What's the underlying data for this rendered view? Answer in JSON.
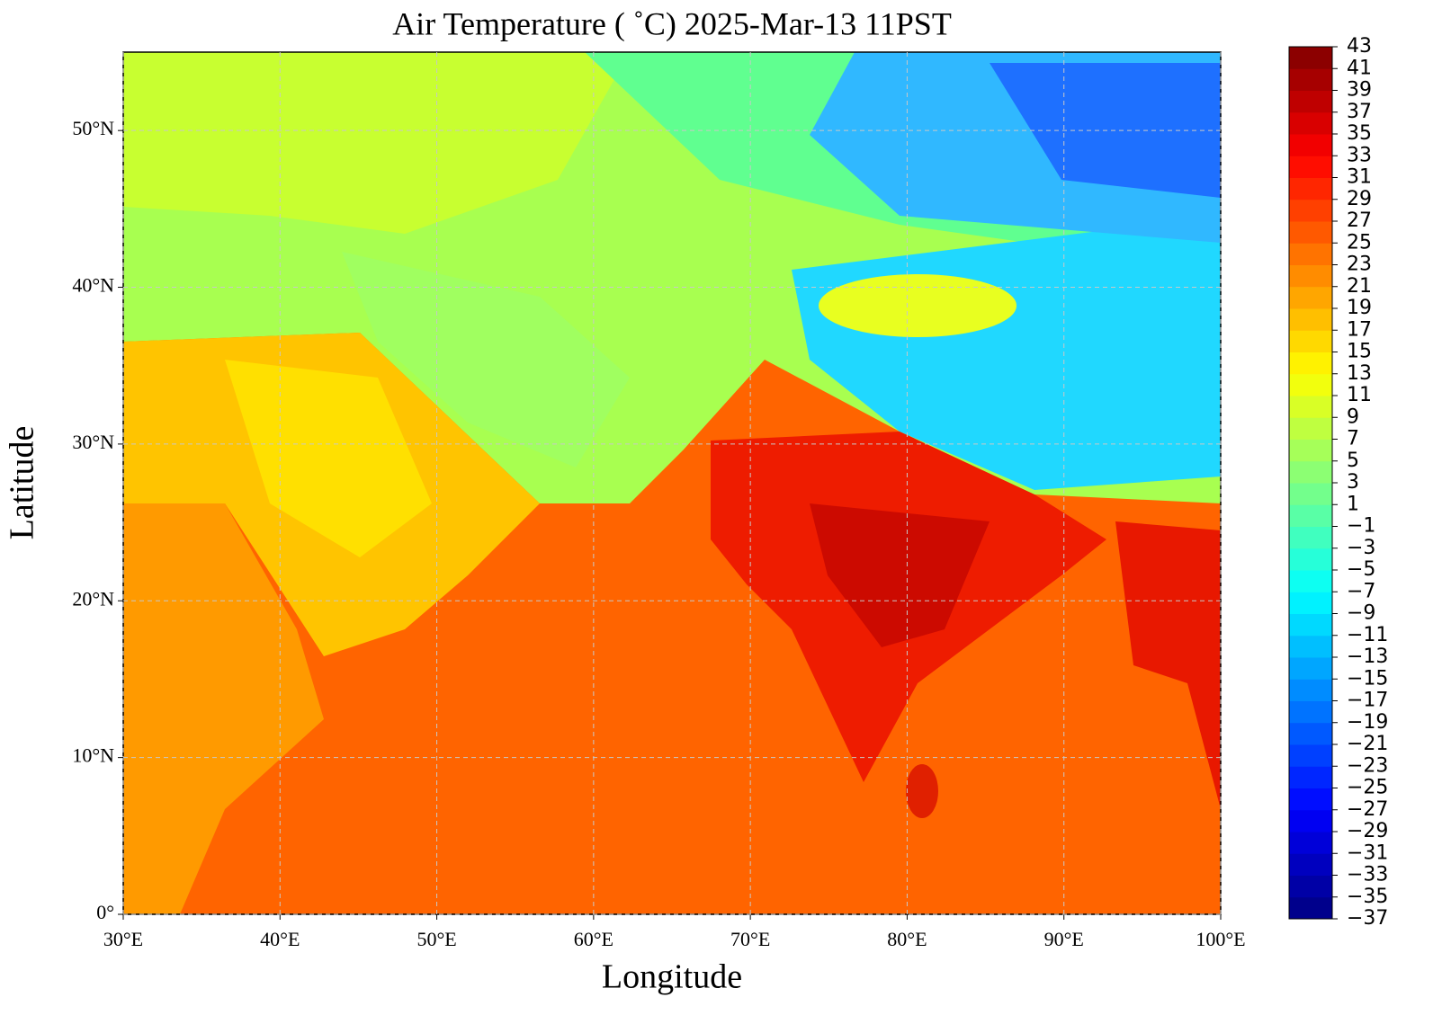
{
  "chart_data": {
    "type": "contour_map",
    "title": "Air Temperature ( ˚C)  2025-Mar-13 11PST",
    "x_label": "Longitude",
    "y_label": "Latitude",
    "xlim": [
      30,
      100
    ],
    "ylim": [
      0,
      55
    ],
    "xticks": [
      {
        "value": 30,
        "label": "30°E"
      },
      {
        "value": 40,
        "label": "40°E"
      },
      {
        "value": 50,
        "label": "50°E"
      },
      {
        "value": 60,
        "label": "60°E"
      },
      {
        "value": 70,
        "label": "70°E"
      },
      {
        "value": 80,
        "label": "80°E"
      },
      {
        "value": 90,
        "label": "90°E"
      },
      {
        "value": 100,
        "label": "100°E"
      }
    ],
    "yticks": [
      {
        "value": 0,
        "label": "0°"
      },
      {
        "value": 10,
        "label": "10°N"
      },
      {
        "value": 20,
        "label": "20°N"
      },
      {
        "value": 30,
        "label": "30°N"
      },
      {
        "value": 40,
        "label": "40°N"
      },
      {
        "value": 50,
        "label": "50°N"
      }
    ],
    "grid": true,
    "colormap": "jet",
    "colorbar_lim": [
      -37,
      43
    ],
    "colorbar_ticks": [
      43,
      41,
      39,
      37,
      35,
      33,
      31,
      29,
      27,
      25,
      23,
      21,
      19,
      17,
      15,
      13,
      11,
      9,
      7,
      5,
      3,
      1,
      {
        "value": -1,
        "label": "−1"
      },
      {
        "value": -3,
        "label": "−3"
      },
      {
        "value": -5,
        "label": "−5"
      },
      {
        "value": -7,
        "label": "−7"
      },
      {
        "value": -9,
        "label": "−9"
      },
      {
        "value": -11,
        "label": "−11"
      },
      {
        "value": -13,
        "label": "−13"
      },
      {
        "value": -15,
        "label": "−15"
      },
      {
        "value": -17,
        "label": "−17"
      },
      {
        "value": -19,
        "label": "−19"
      },
      {
        "value": -21,
        "label": "−21"
      },
      {
        "value": -23,
        "label": "−23"
      },
      {
        "value": -25,
        "label": "−25"
      },
      {
        "value": -27,
        "label": "−27"
      },
      {
        "value": -29,
        "label": "−29"
      },
      {
        "value": -31,
        "label": "−31"
      },
      {
        "value": -33,
        "label": "−33"
      },
      {
        "value": -35,
        "label": "−35"
      },
      {
        "value": -37,
        "label": "−37"
      }
    ]
  }
}
